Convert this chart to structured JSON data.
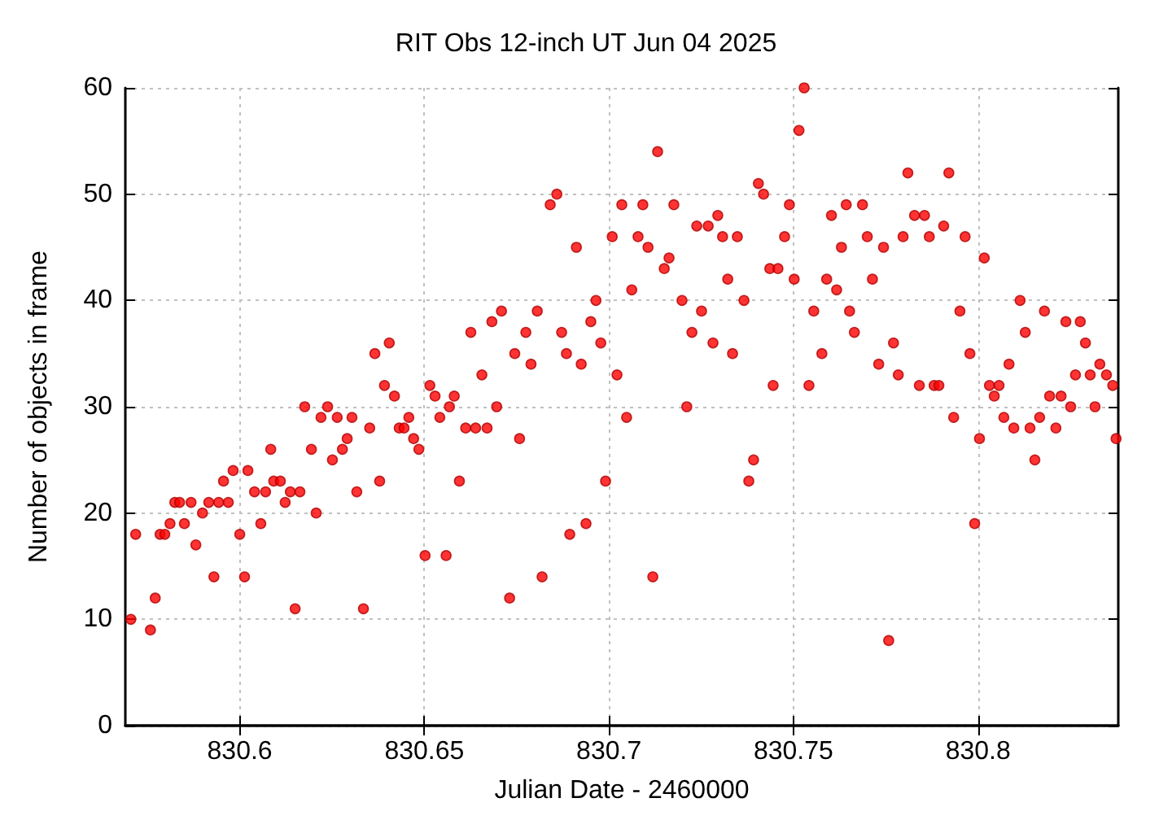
{
  "chart_data": {
    "type": "scatter",
    "title": "RIT Obs 12-inch UT Jun 04 2025",
    "xlabel": "Julian Date - 2460000",
    "ylabel": "Number of objects in frame",
    "xlim": [
      830.569,
      830.838
    ],
    "xticks": [
      830.6,
      830.65,
      830.7,
      830.75,
      830.8
    ],
    "ylim": [
      0,
      60
    ],
    "yticks": [
      0,
      10,
      20,
      30,
      40,
      50,
      60
    ],
    "grid": true,
    "marker": "circle",
    "series": [
      {
        "color": "#ff0000",
        "x": [
          830.5705,
          830.5718,
          830.5758,
          830.5771,
          830.5784,
          830.5797,
          830.5811,
          830.5824,
          830.5837,
          830.585,
          830.5868,
          830.5881,
          830.5899,
          830.5916,
          830.593,
          830.5943,
          830.5956,
          830.5969,
          830.5982,
          830.6,
          830.6013,
          830.6022,
          830.604,
          830.6057,
          830.607,
          830.6084,
          830.6092,
          830.611,
          830.6123,
          830.6137,
          830.615,
          830.6163,
          830.6176,
          830.6194,
          830.6207,
          830.622,
          830.6238,
          830.6251,
          830.6264,
          830.6278,
          830.6291,
          830.6304,
          830.6317,
          830.6335,
          830.6352,
          830.6366,
          830.6379,
          830.6392,
          830.6405,
          830.6419,
          830.6432,
          830.6445,
          830.6458,
          830.6471,
          830.6485,
          830.6502,
          830.6515,
          830.6529,
          830.6542,
          830.6559,
          830.6568,
          830.6581,
          830.6595,
          830.6612,
          830.6626,
          830.6639,
          830.6656,
          830.667,
          830.6683,
          830.6696,
          830.6709,
          830.6731,
          830.6745,
          830.6758,
          830.6775,
          830.6789,
          830.6806,
          830.6819,
          830.6841,
          830.6859,
          830.6872,
          830.6885,
          830.6894,
          830.6912,
          830.6925,
          830.6938,
          830.6951,
          830.6965,
          830.6978,
          830.6991,
          830.7009,
          830.7022,
          830.7035,
          830.7048,
          830.7062,
          830.7079,
          830.7092,
          830.7106,
          830.7119,
          830.7132,
          830.715,
          830.7163,
          830.7176,
          830.7198,
          830.7211,
          830.7225,
          830.7238,
          830.7251,
          830.7269,
          830.7282,
          830.7295,
          830.7308,
          830.7322,
          830.7335,
          830.7348,
          830.7366,
          830.7379,
          830.7392,
          830.7405,
          830.7419,
          830.7436,
          830.7445,
          830.7458,
          830.7476,
          830.7489,
          830.7502,
          830.7515,
          830.7529,
          830.7542,
          830.7555,
          830.7577,
          830.759,
          830.7603,
          830.7617,
          830.763,
          830.7643,
          830.7652,
          830.7665,
          830.7687,
          830.77,
          830.7714,
          830.7731,
          830.7744,
          830.7758,
          830.7771,
          830.7784,
          830.7797,
          830.781,
          830.7828,
          830.7841,
          830.7855,
          830.7868,
          830.7881,
          830.7894,
          830.7907,
          830.7921,
          830.7934,
          830.7951,
          830.7965,
          830.7978,
          830.7991,
          830.8004,
          830.8017,
          830.8031,
          830.8044,
          830.8057,
          830.807,
          830.8084,
          830.8097,
          830.8114,
          830.8128,
          830.8141,
          830.8154,
          830.8167,
          830.818,
          830.8194,
          830.8211,
          830.8225,
          830.8238,
          830.8251,
          830.8264,
          830.8277,
          830.8291,
          830.8304,
          830.8317,
          830.833,
          830.8348,
          830.8365,
          830.8374
        ],
        "values": [
          10,
          18,
          9,
          12,
          18,
          18,
          19,
          21,
          21,
          19,
          21,
          17,
          20,
          21,
          14,
          21,
          23,
          21,
          24,
          18,
          14,
          24,
          22,
          19,
          22,
          26,
          23,
          23,
          21,
          22,
          11,
          22,
          30,
          26,
          20,
          29,
          30,
          25,
          29,
          26,
          27,
          29,
          22,
          11,
          28,
          35,
          23,
          32,
          36,
          31,
          28,
          28,
          29,
          27,
          26,
          16,
          32,
          31,
          29,
          16,
          30,
          31,
          23,
          28,
          37,
          28,
          33,
          28,
          38,
          30,
          39,
          12,
          35,
          27,
          37,
          34,
          39,
          14,
          49,
          50,
          37,
          35,
          18,
          45,
          34,
          19,
          38,
          40,
          36,
          23,
          46,
          33,
          49,
          29,
          41,
          46,
          49,
          45,
          14,
          54,
          43,
          44,
          49,
          40,
          30,
          37,
          47,
          39,
          47,
          36,
          48,
          46,
          42,
          35,
          46,
          40,
          23,
          25,
          51,
          50,
          43,
          32,
          43,
          46,
          49,
          42,
          56,
          60,
          32,
          39,
          35,
          42,
          48,
          41,
          45,
          49,
          39,
          37,
          49,
          46,
          42,
          34,
          45,
          8,
          36,
          33,
          46,
          52,
          48,
          32,
          48,
          46,
          32,
          32,
          47,
          52,
          29,
          39,
          46,
          35,
          19,
          27,
          44,
          32,
          31,
          32,
          29,
          34,
          28,
          40,
          37,
          28,
          25,
          29,
          39,
          31,
          28,
          31,
          38,
          30,
          33,
          38,
          36,
          33,
          30,
          34,
          33,
          32,
          27
        ]
      }
    ]
  }
}
